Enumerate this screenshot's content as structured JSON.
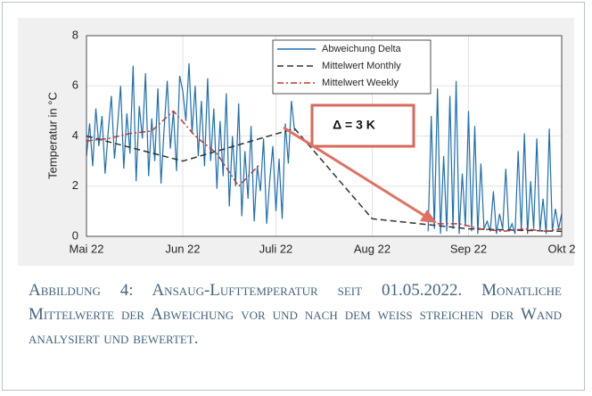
{
  "chart_data": {
    "type": "line",
    "ylabel": "Temperatur in °C",
    "xlim": [
      0,
      153
    ],
    "ylim": [
      0,
      8
    ],
    "xticks": [
      {
        "value": 0,
        "label": "Mai 22"
      },
      {
        "value": 31,
        "label": "Jun 22"
      },
      {
        "value": 61,
        "label": "Juli 22"
      },
      {
        "value": 92,
        "label": "Aug 22"
      },
      {
        "value": 123,
        "label": "Sep 22"
      },
      {
        "value": 153,
        "label": "Okt 2"
      }
    ],
    "yticks": [
      0,
      2,
      4,
      6,
      8
    ],
    "grid": true,
    "legend": "top-right",
    "series": [
      {
        "name": "Abweichung Delta",
        "color": "#1f6fb0",
        "dash": "solid",
        "x": [
          0,
          1,
          2,
          3,
          4,
          5,
          6,
          7,
          8,
          9,
          10,
          11,
          12,
          13,
          14,
          15,
          16,
          17,
          18,
          19,
          20,
          21,
          22,
          23,
          24,
          25,
          26,
          27,
          28,
          29,
          30,
          31,
          32,
          33,
          34,
          35,
          36,
          37,
          38,
          39,
          40,
          41,
          42,
          43,
          44,
          45,
          46,
          47,
          48,
          49,
          50,
          51,
          52,
          53,
          54,
          55,
          56,
          57,
          58,
          59,
          60,
          61,
          62,
          63,
          64,
          65,
          66,
          67,
          88,
          110,
          111,
          112,
          113,
          114,
          115,
          116,
          117,
          118,
          119,
          120,
          121,
          122,
          123,
          124,
          125,
          126,
          127,
          128,
          129,
          130,
          131,
          132,
          133,
          134,
          135,
          136,
          137,
          138,
          139,
          140,
          141,
          142,
          143,
          144,
          145,
          146,
          147,
          148,
          149,
          150,
          151,
          152,
          153
        ],
        "values": [
          3.2,
          4.5,
          2.8,
          5.1,
          3.6,
          4.8,
          2.5,
          4.2,
          5.6,
          3.1,
          4.4,
          6.0,
          2.7,
          4.9,
          3.3,
          6.8,
          2.2,
          5.2,
          3.9,
          6.5,
          2.4,
          4.7,
          3.0,
          5.9,
          2.1,
          4.3,
          6.2,
          3.5,
          5.0,
          2.6,
          6.4,
          5.8,
          4.6,
          6.9,
          4.1,
          6.0,
          3.2,
          5.4,
          2.8,
          6.3,
          3.0,
          5.1,
          1.9,
          4.6,
          2.4,
          5.7,
          1.2,
          4.0,
          2.0,
          5.3,
          0.8,
          3.4,
          1.5,
          4.4,
          0.6,
          2.8,
          1.8,
          3.9,
          0.5,
          2.2,
          3.6,
          1.0,
          3.1,
          0.7,
          4.5,
          2.9,
          5.4,
          4.2,
          null,
          0.2,
          4.8,
          0.3,
          5.9,
          0.1,
          3.2,
          0.2,
          5.6,
          0.3,
          6.2,
          0.1,
          2.5,
          0.4,
          5.0,
          0.2,
          4.4,
          0.1,
          2.9,
          0.3,
          0.6,
          0.2,
          1.8,
          0.1,
          0.9,
          0.3,
          2.7,
          0.2,
          0.5,
          0.1,
          3.4,
          0.2,
          4.1,
          0.1,
          2.2,
          0.3,
          3.9,
          0.2,
          1.5,
          0.1,
          4.3,
          0.2,
          1.1,
          0.3,
          0.9
        ]
      },
      {
        "name": "Mittelwert Monthly",
        "color": "#333333",
        "dash": "dashed",
        "x": [
          0,
          31,
          67,
          92,
          123,
          153
        ],
        "values": [
          4.0,
          3.0,
          4.3,
          0.7,
          0.3,
          0.2
        ]
      },
      {
        "name": "Mittelwert Weekly",
        "color": "#c0392b",
        "dash": "dashdot",
        "x": [
          0,
          7,
          14,
          21,
          28,
          35,
          42,
          49,
          56,
          85,
          113,
          120,
          127,
          134,
          141,
          148,
          153
        ],
        "values": [
          3.8,
          3.9,
          4.1,
          4.2,
          5.0,
          4.0,
          3.3,
          2.0,
          2.9,
          null,
          0.5,
          0.5,
          0.3,
          0.2,
          0.3,
          0.2,
          0.3
        ]
      }
    ],
    "annotation": "Δ = 3 K"
  },
  "caption": "Abbildung 4: Ansaug-Lufttemperatur seit 01.05.2022. Monatliche Mittelwerte der Abweichung vor und nach dem weiß streichen der Wand analysiert und bewertet."
}
